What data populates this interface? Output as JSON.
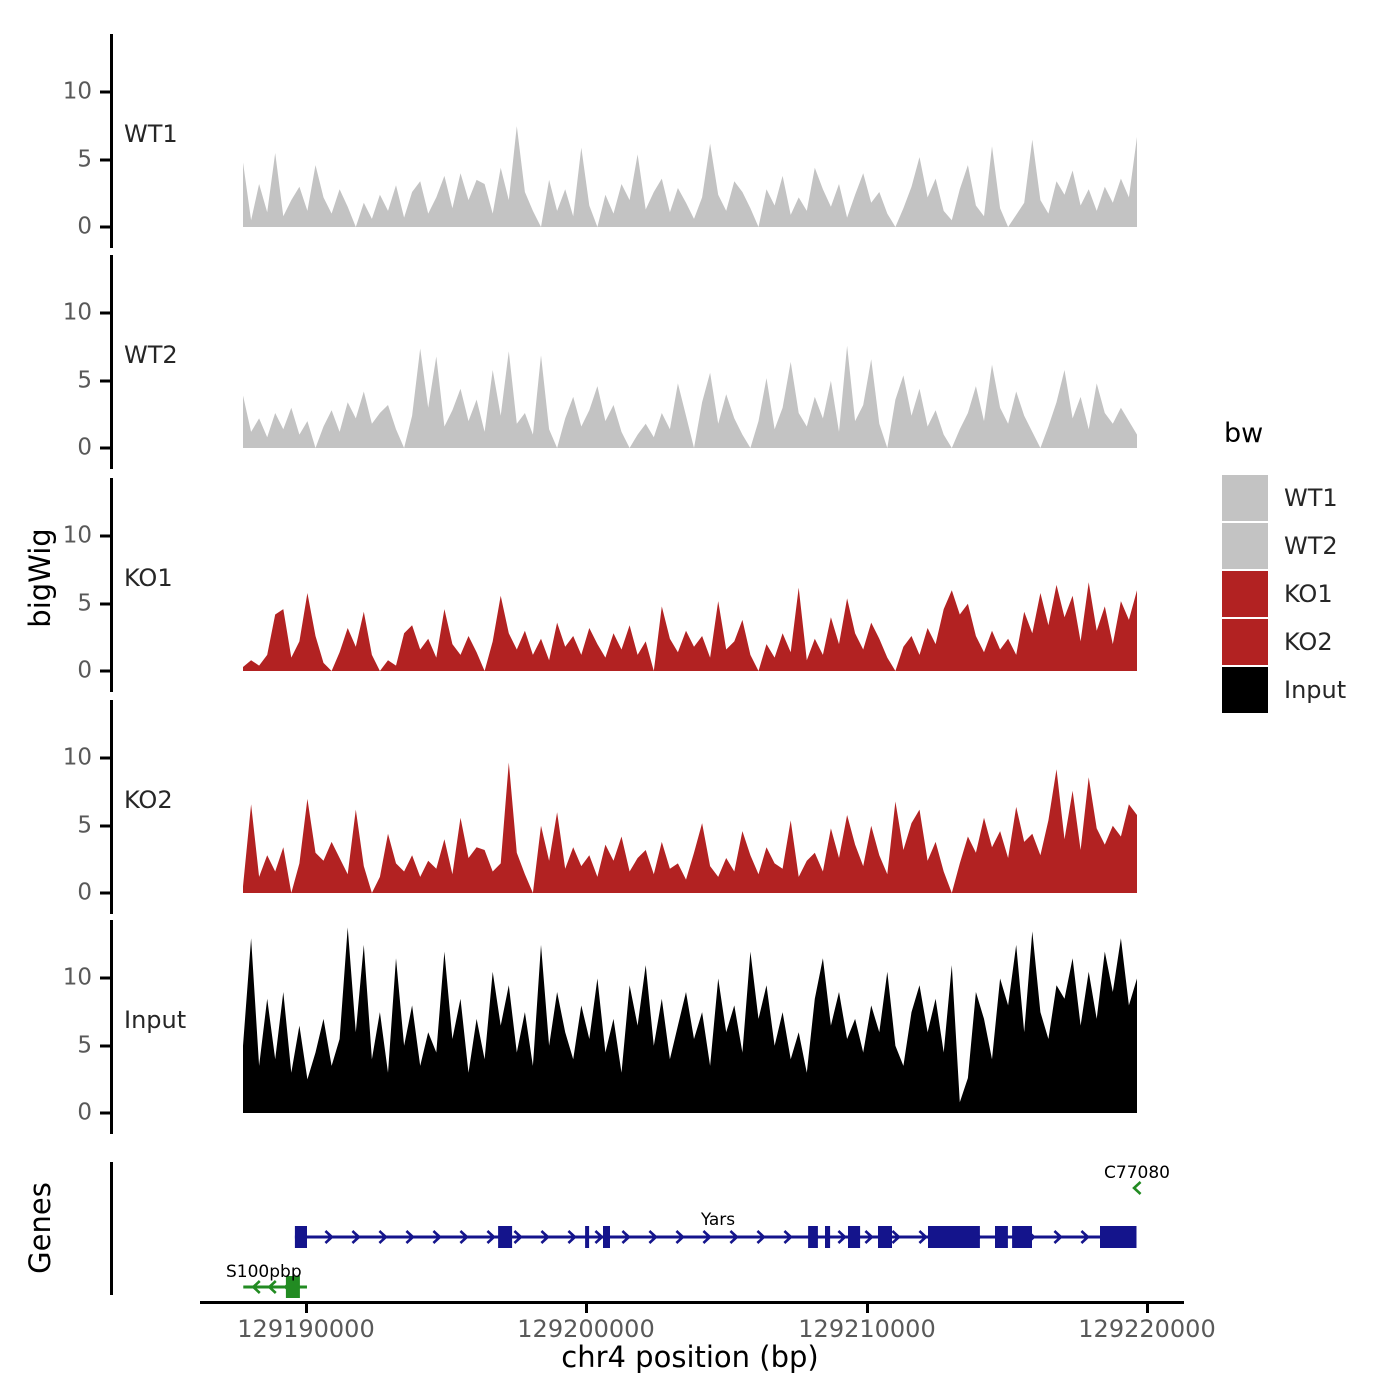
{
  "figure": {
    "y_axis_title": "bigWig",
    "genes_axis_title": "Genes",
    "x_axis_title": "chr4 position (bp)"
  },
  "legend": {
    "title": "bw",
    "items": [
      {
        "label": "WT1",
        "color": "#C3C3C3"
      },
      {
        "label": "WT2",
        "color": "#C3C3C3"
      },
      {
        "label": "KO1",
        "color": "#B22222"
      },
      {
        "label": "KO2",
        "color": "#B22222"
      },
      {
        "label": "Input",
        "color": "#000000"
      }
    ]
  },
  "chart_data": {
    "type": "area",
    "title": "",
    "xlabel": "chr4 position (bp)",
    "ylabel": "bigWig",
    "x": {
      "chrom": "chr4",
      "start": 129187750,
      "end": 129219610,
      "ticks": [
        129190000,
        129200000,
        129210000,
        129220000
      ],
      "tick_labels": [
        "129190000",
        "129200000",
        "129210000",
        "129220000"
      ]
    },
    "ylim": [
      0,
      14
    ],
    "y_ticks": [
      0,
      5,
      10
    ],
    "y_tick_labels": [
      "0",
      "5",
      "10"
    ],
    "series": [
      {
        "name": "WT1",
        "color": "#C3C3C3",
        "values": [
          4.8,
          0.5,
          3.2,
          1.1,
          5.5,
          0.8,
          2.0,
          3.0,
          1.2,
          4.6,
          2.2,
          1.0,
          2.8,
          1.5,
          0.0,
          1.8,
          0.6,
          2.4,
          1.2,
          3.1,
          0.7,
          2.6,
          3.4,
          1.0,
          2.2,
          3.8,
          1.4,
          4.0,
          2.0,
          3.5,
          3.2,
          1.0,
          4.4,
          2.0,
          7.5,
          2.6,
          1.2,
          0.0,
          3.5,
          1.2,
          2.8,
          0.8,
          5.9,
          1.6,
          0.0,
          2.4,
          1.0,
          3.2,
          2.0,
          5.4,
          1.3,
          2.6,
          3.6,
          1.1,
          2.9,
          1.8,
          0.6,
          2.2,
          6.2,
          2.4,
          1.2,
          3.4,
          2.6,
          1.4,
          0.0,
          2.8,
          1.6,
          3.8,
          0.9,
          2.2,
          1.2,
          4.4,
          2.8,
          1.5,
          3.2,
          0.7,
          2.4,
          4.0,
          1.8,
          2.6,
          1.0,
          0.0,
          1.4,
          3.0,
          5.2,
          2.2,
          3.6,
          1.2,
          0.5,
          2.8,
          4.6,
          1.6,
          0.8,
          6.0,
          1.4,
          0.0,
          0.9,
          1.8,
          6.5,
          2.0,
          1.0,
          3.4,
          2.4,
          4.2,
          1.6,
          2.8,
          1.2,
          3.0,
          1.8,
          3.6,
          2.2,
          6.7
        ]
      },
      {
        "name": "WT2",
        "color": "#C3C3C3",
        "values": [
          3.9,
          1.2,
          2.2,
          0.8,
          2.6,
          1.4,
          3.0,
          1.0,
          2.0,
          0.0,
          1.6,
          2.8,
          1.2,
          3.4,
          2.2,
          4.2,
          1.8,
          2.6,
          3.2,
          1.4,
          0.0,
          2.4,
          7.4,
          3.0,
          6.8,
          1.6,
          2.8,
          4.4,
          2.0,
          3.6,
          1.2,
          5.8,
          2.4,
          7.2,
          1.8,
          2.6,
          1.0,
          6.9,
          1.4,
          0.0,
          2.2,
          3.8,
          1.6,
          2.8,
          4.6,
          2.0,
          3.2,
          1.2,
          0.0,
          1.0,
          1.8,
          0.8,
          2.6,
          1.4,
          4.8,
          2.4,
          0.0,
          3.4,
          5.6,
          1.8,
          4.0,
          2.2,
          1.0,
          0.0,
          2.0,
          5.2,
          1.4,
          3.0,
          6.4,
          2.6,
          1.6,
          3.8,
          2.2,
          5.0,
          1.2,
          7.6,
          2.0,
          3.2,
          6.6,
          1.8,
          0.0,
          3.6,
          5.4,
          2.4,
          4.4,
          1.6,
          2.8,
          1.0,
          0.0,
          1.4,
          2.6,
          4.6,
          2.0,
          6.2,
          3.0,
          1.8,
          4.2,
          2.4,
          1.2,
          0.0,
          1.6,
          3.4,
          5.8,
          2.2,
          3.8,
          1.4,
          4.8,
          2.6,
          1.8,
          3.0,
          2.0,
          1.0
        ]
      },
      {
        "name": "KO1",
        "color": "#B22222",
        "values": [
          0.3,
          0.8,
          0.4,
          1.2,
          4.2,
          4.6,
          1.0,
          2.2,
          5.8,
          2.6,
          0.6,
          0.0,
          1.4,
          3.2,
          1.8,
          4.4,
          1.2,
          0.0,
          0.8,
          0.4,
          2.8,
          3.4,
          1.6,
          2.4,
          1.0,
          4.6,
          2.0,
          1.2,
          2.6,
          1.4,
          0.0,
          2.2,
          5.6,
          2.8,
          1.6,
          3.0,
          1.2,
          2.4,
          0.8,
          3.6,
          1.8,
          2.6,
          1.2,
          3.2,
          2.0,
          1.0,
          2.8,
          1.6,
          3.4,
          1.2,
          2.2,
          0.0,
          4.8,
          2.4,
          1.4,
          3.0,
          1.8,
          2.6,
          1.0,
          5.2,
          1.6,
          2.2,
          3.8,
          1.2,
          0.0,
          2.0,
          1.0,
          2.8,
          1.4,
          6.2,
          0.8,
          2.4,
          1.2,
          4.0,
          2.0,
          5.4,
          2.8,
          1.6,
          3.6,
          2.4,
          1.0,
          0.0,
          1.8,
          2.6,
          1.2,
          3.2,
          2.0,
          4.6,
          6.0,
          4.2,
          5.0,
          2.6,
          1.4,
          3.0,
          1.6,
          2.4,
          1.2,
          4.4,
          2.8,
          5.8,
          3.4,
          6.4,
          4.0,
          5.6,
          2.2,
          6.6,
          3.0,
          4.8,
          2.0,
          5.2,
          3.8,
          6.0
        ]
      },
      {
        "name": "KO2",
        "color": "#B22222",
        "values": [
          0.5,
          6.6,
          1.2,
          2.8,
          1.6,
          3.4,
          0.0,
          2.2,
          7.0,
          3.0,
          2.4,
          3.8,
          2.6,
          1.4,
          6.2,
          2.0,
          0.0,
          1.2,
          4.4,
          2.2,
          1.6,
          2.8,
          1.2,
          2.4,
          1.8,
          4.0,
          1.4,
          5.6,
          2.6,
          3.4,
          3.2,
          1.6,
          2.2,
          9.7,
          3.0,
          1.4,
          0.0,
          5.0,
          2.4,
          6.0,
          1.8,
          3.4,
          2.0,
          2.8,
          1.2,
          3.6,
          2.4,
          4.2,
          1.6,
          2.6,
          3.2,
          1.4,
          3.8,
          1.8,
          2.2,
          1.0,
          3.0,
          5.2,
          2.0,
          1.2,
          2.6,
          1.6,
          4.6,
          2.8,
          1.4,
          3.4,
          2.2,
          1.8,
          5.4,
          1.2,
          2.4,
          3.0,
          1.6,
          4.8,
          2.6,
          5.8,
          3.6,
          2.0,
          5.0,
          2.8,
          1.4,
          6.8,
          3.2,
          5.2,
          6.2,
          2.4,
          3.8,
          1.6,
          0.0,
          2.2,
          4.2,
          3.0,
          5.6,
          3.4,
          4.6,
          2.6,
          6.4,
          3.8,
          4.4,
          2.8,
          5.4,
          9.2,
          4.0,
          7.6,
          3.2,
          8.6,
          4.8,
          3.6,
          5.0,
          4.2,
          6.6,
          5.8
        ]
      },
      {
        "name": "Input",
        "color": "#000000",
        "values": [
          5.0,
          13.0,
          3.5,
          8.5,
          4.0,
          9.0,
          3.0,
          6.5,
          2.5,
          4.5,
          7.0,
          3.5,
          5.5,
          13.8,
          6.0,
          12.5,
          4.0,
          7.5,
          3.0,
          11.5,
          5.0,
          8.0,
          3.5,
          6.0,
          4.5,
          12.0,
          5.5,
          8.5,
          3.0,
          7.0,
          4.0,
          10.5,
          6.5,
          9.5,
          4.5,
          7.5,
          3.5,
          12.5,
          5.0,
          9.0,
          6.0,
          4.0,
          8.0,
          5.5,
          10.0,
          4.5,
          7.0,
          3.0,
          9.5,
          6.5,
          11.0,
          5.0,
          8.5,
          4.0,
          6.5,
          9.0,
          5.5,
          7.5,
          3.5,
          10.0,
          6.0,
          8.0,
          4.5,
          12.0,
          7.0,
          9.5,
          5.0,
          7.5,
          4.0,
          6.0,
          3.0,
          8.5,
          11.5,
          6.5,
          9.0,
          5.5,
          7.0,
          4.5,
          8.0,
          6.0,
          10.5,
          5.0,
          3.5,
          7.5,
          9.5,
          6.0,
          8.5,
          4.5,
          11.0,
          0.8,
          2.6,
          9.0,
          7.0,
          4.0,
          10.0,
          8.0,
          12.5,
          6.0,
          13.5,
          7.5,
          5.5,
          9.5,
          8.5,
          11.5,
          6.5,
          10.5,
          7.0,
          12.0,
          9.0,
          13.0,
          8.0,
          10.0
        ]
      }
    ],
    "genes": [
      {
        "name": "Yars",
        "strand": "+",
        "color": "#14148C",
        "start": 129189600,
        "end": 129219590,
        "exons": [
          [
            129189600,
            129190030
          ],
          [
            129196840,
            129197340
          ],
          [
            129199940,
            129200080
          ],
          [
            129200580,
            129200830
          ],
          [
            129207890,
            129208240
          ],
          [
            129208490,
            129208670
          ],
          [
            129209310,
            129209740
          ],
          [
            129210380,
            129210880
          ],
          [
            129212160,
            129214010
          ],
          [
            129214550,
            129215010
          ],
          [
            129215160,
            129215870
          ],
          [
            129218290,
            129219590
          ]
        ]
      },
      {
        "name": "S100pbp",
        "strand": "-",
        "color": "#228B22",
        "start": 129187760,
        "end": 129190030,
        "exons": [
          [
            129189280,
            129189780
          ]
        ]
      },
      {
        "name": "C77080",
        "strand": "-",
        "color": "#228B22",
        "start": 129219450,
        "end": 129219560,
        "exons": []
      }
    ]
  }
}
